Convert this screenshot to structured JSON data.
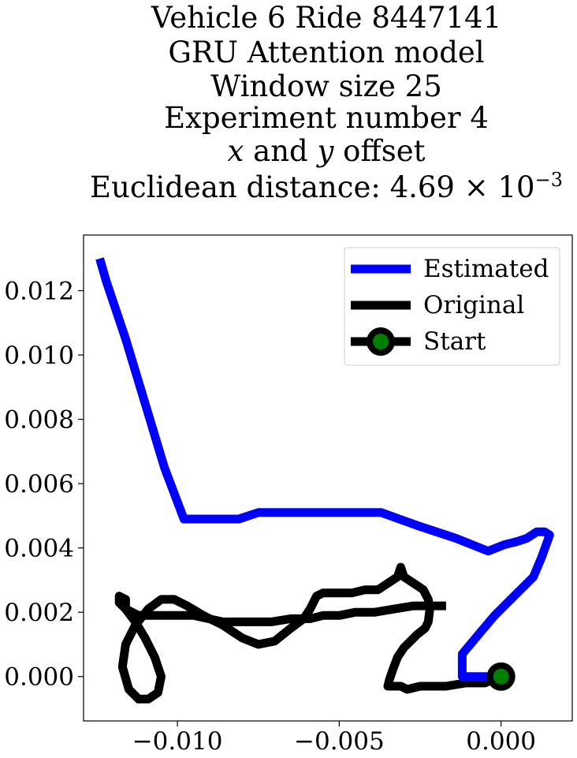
{
  "chart_data": {
    "type": "line",
    "title_lines": [
      "Vehicle 6 Ride 8447141",
      "GRU Attention model",
      "Window size 25",
      "Experiment number 4"
    ],
    "title_offset_line": {
      "x": "x",
      "and": " and ",
      "y": "y",
      "rest": " offset"
    },
    "title_distance": {
      "prefix": "Euclidean distance: 4.69 × 10",
      "exponent": "−3"
    },
    "xlim": [
      -0.0129,
      0.0022
    ],
    "ylim": [
      -0.00138,
      0.01373
    ],
    "xticks": [
      -0.01,
      -0.005,
      0.0
    ],
    "xtick_labels": [
      "−0.010",
      "−0.005",
      "0.000"
    ],
    "yticks": [
      0.0,
      0.002,
      0.004,
      0.006,
      0.008,
      0.01,
      0.012
    ],
    "ytick_labels": [
      "0.000",
      "0.002",
      "0.004",
      "0.006",
      "0.008",
      "0.010",
      "0.012"
    ],
    "grid": false,
    "legend_position": "upper right",
    "series": [
      {
        "name": "Estimated",
        "color": "#0000ff",
        "points": [
          [
            0.0,
            0.0
          ],
          [
            -0.0012,
            0.0
          ],
          [
            -0.0012,
            0.0007
          ],
          [
            -0.0007,
            0.0013
          ],
          [
            -0.0002,
            0.0019
          ],
          [
            0.0004,
            0.0025
          ],
          [
            0.001,
            0.0031
          ],
          [
            0.00125,
            0.0037
          ],
          [
            0.0015,
            0.0044
          ],
          [
            0.00135,
            0.0045
          ],
          [
            0.0011,
            0.0045
          ],
          [
            0.0008,
            0.0043
          ],
          [
            0.0005,
            0.0042
          ],
          [
            0.0001,
            0.0041
          ],
          [
            -0.0004,
            0.0039
          ],
          [
            -0.0014,
            0.0043
          ],
          [
            -0.0026,
            0.0047
          ],
          [
            -0.0037,
            0.0051
          ],
          [
            -0.0048,
            0.0051
          ],
          [
            -0.0062,
            0.0051
          ],
          [
            -0.0075,
            0.0051
          ],
          [
            -0.0078,
            0.005
          ],
          [
            -0.0081,
            0.0049
          ],
          [
            -0.009,
            0.0049
          ],
          [
            -0.0098,
            0.0049
          ],
          [
            -0.0104,
            0.0065
          ],
          [
            -0.011,
            0.0085
          ],
          [
            -0.0116,
            0.0105
          ],
          [
            -0.0122,
            0.0123
          ],
          [
            -0.0124,
            0.013
          ]
        ]
      },
      {
        "name": "Original",
        "color": "#000000",
        "points": [
          [
            0.0,
            0.0
          ],
          [
            -0.0005,
            -0.0002
          ],
          [
            -0.0011,
            -0.0002
          ],
          [
            -0.0017,
            -0.0003
          ],
          [
            -0.0021,
            -0.0003
          ],
          [
            -0.0025,
            -0.0003
          ],
          [
            -0.0029,
            -0.0004
          ],
          [
            -0.0031,
            -0.0003
          ],
          [
            -0.0033,
            -0.0003
          ],
          [
            -0.0035,
            -0.0003
          ],
          [
            -0.00345,
            -0.0001
          ],
          [
            -0.00335,
            0.0002
          ],
          [
            -0.0032,
            0.0006
          ],
          [
            -0.003,
            0.0009
          ],
          [
            -0.0028,
            0.0011
          ],
          [
            -0.0026,
            0.0013
          ],
          [
            -0.00235,
            0.0015
          ],
          [
            -0.00225,
            0.0017
          ],
          [
            -0.0022,
            0.0021
          ],
          [
            -0.00225,
            0.0024
          ],
          [
            -0.0024,
            0.0027
          ],
          [
            -0.0027,
            0.0029
          ],
          [
            -0.003,
            0.0031
          ],
          [
            -0.0031,
            0.0034
          ],
          [
            -0.0032,
            0.0031
          ],
          [
            -0.0035,
            0.0029
          ],
          [
            -0.0038,
            0.0027
          ],
          [
            -0.0042,
            0.0027
          ],
          [
            -0.0046,
            0.0026
          ],
          [
            -0.0051,
            0.0026
          ],
          [
            -0.0055,
            0.0026
          ],
          [
            -0.0057,
            0.0025
          ],
          [
            -0.0059,
            0.0021
          ],
          [
            -0.0061,
            0.0018
          ],
          [
            -0.0065,
            0.0015
          ],
          [
            -0.007,
            0.0011
          ],
          [
            -0.0075,
            0.001
          ],
          [
            -0.008,
            0.0012
          ],
          [
            -0.0086,
            0.0016
          ],
          [
            -0.0092,
            0.0019
          ],
          [
            -0.0097,
            0.0022
          ],
          [
            -0.0101,
            0.0024
          ],
          [
            -0.0105,
            0.0024
          ],
          [
            -0.0109,
            0.0021
          ],
          [
            -0.0113,
            0.0016
          ],
          [
            -0.0116,
            0.001
          ],
          [
            -0.0117,
            0.0003
          ],
          [
            -0.0115,
            -0.0004
          ],
          [
            -0.0112,
            -0.0007
          ],
          [
            -0.0109,
            -0.0007
          ],
          [
            -0.0106,
            -0.0005
          ],
          [
            -0.0105,
            0.0
          ],
          [
            -0.0107,
            0.0006
          ],
          [
            -0.011,
            0.0012
          ],
          [
            -0.0113,
            0.0017
          ],
          [
            -0.0116,
            0.0021
          ],
          [
            -0.0118,
            0.0023
          ],
          [
            -0.0118,
            0.0025
          ],
          [
            -0.0116,
            0.0024
          ],
          [
            -0.0116,
            0.0021
          ],
          [
            -0.0112,
            0.0019
          ],
          [
            -0.0104,
            0.0019
          ],
          [
            -0.0095,
            0.0019
          ],
          [
            -0.0086,
            0.0017
          ],
          [
            -0.0078,
            0.0017
          ],
          [
            -0.0071,
            0.0017
          ],
          [
            -0.0065,
            0.0018
          ],
          [
            -0.0059,
            0.0018
          ],
          [
            -0.0055,
            0.0019
          ],
          [
            -0.005,
            0.0019
          ],
          [
            -0.0045,
            0.002
          ],
          [
            -0.0039,
            0.002
          ],
          [
            -0.0033,
            0.0021
          ],
          [
            -0.0027,
            0.0022
          ],
          [
            -0.0017,
            0.0022
          ]
        ]
      }
    ],
    "start_marker": {
      "name": "Start",
      "x": 0.0,
      "y": 0.0,
      "edge_color": "#000000",
      "face_color": "#008000"
    }
  }
}
